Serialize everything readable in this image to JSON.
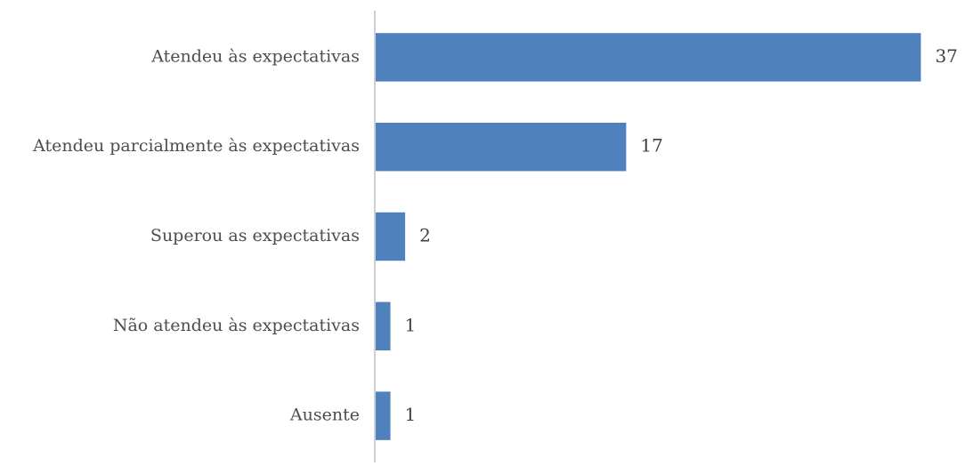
{
  "chart_data": {
    "type": "bar",
    "orientation": "horizontal",
    "categories": [
      "Atendeu às expectativas",
      "Atendeu parcialmente às expectativas",
      "Superou as expectativas",
      "Não atendeu às expectativas",
      "Ausente"
    ],
    "values": [
      37,
      17,
      2,
      1,
      1
    ],
    "title": "",
    "xlabel": "",
    "ylabel": "",
    "xlim": [
      0,
      38
    ],
    "grid": false,
    "legend": "none",
    "data_labels": true,
    "bar_color": "#4f81bd",
    "axis_color": "#bfbfbf",
    "label_color": "#4d4d4d"
  }
}
